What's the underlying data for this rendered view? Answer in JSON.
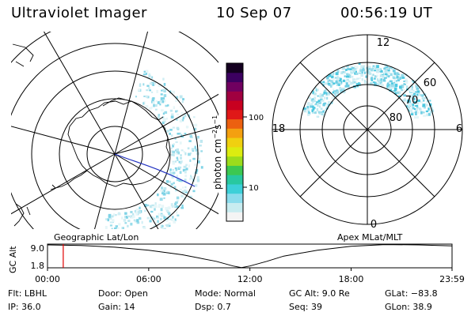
{
  "header": {
    "instrument": "Ultraviolet Imager",
    "date": "10 Sep 07",
    "time": "00:56:19 UT"
  },
  "panels": {
    "left_label": "Geographic Lat/Lon",
    "right_label": "Apex MLat/MLT",
    "right_mlt_labels": [
      "12",
      "18",
      "6",
      "0"
    ],
    "right_mlat_labels": [
      "60",
      "70",
      "80"
    ]
  },
  "colorbar": {
    "title": "photon cm",
    "exp1": "−2",
    "mid": "s",
    "exp2": "−1",
    "tick_labels": [
      "100",
      "10"
    ],
    "scale": "log",
    "colors": [
      "#f4f4f4",
      "#c8ecf0",
      "#8adcec",
      "#3cd0d8",
      "#28c8a0",
      "#3cc850",
      "#9cdc1c",
      "#dcec10",
      "#f0d010",
      "#f4a010",
      "#ec6010",
      "#e01818",
      "#c80020",
      "#a00040",
      "#700060",
      "#3c0060",
      "#140020"
    ]
  },
  "altitude_plot": {
    "ylabel": "GC Alt",
    "ytick_labels": [
      "9.0",
      "1.8"
    ],
    "xtick_labels": [
      "00:00",
      "06:00",
      "12:00",
      "18:00",
      "23:59"
    ],
    "current_time_marker": "00:56"
  },
  "chart_data": {
    "type": "line",
    "title": "",
    "xlabel": "",
    "ylabel": "GC Alt",
    "ylim": [
      1.8,
      9.0
    ],
    "x": [
      "00:00",
      "02:00",
      "04:00",
      "06:00",
      "08:00",
      "10:00",
      "11:00",
      "11:30",
      "12:00",
      "13:00",
      "14:00",
      "16:00",
      "18:00",
      "20:00",
      "22:00",
      "23:59"
    ],
    "series": [
      {
        "values": [
          9.0,
          8.8,
          8.3,
          7.4,
          6.0,
          4.0,
          2.6,
          2.1,
          2.6,
          4.0,
          5.6,
          7.4,
          8.6,
          9.1,
          9.0,
          8.7
        ]
      }
    ]
  },
  "footer": {
    "rows": [
      [
        {
          "k": "Flt:",
          "v": "LBHL"
        },
        {
          "k": "Door:",
          "v": "Open"
        },
        {
          "k": "Mode:",
          "v": "Normal"
        },
        {
          "k": "GC Alt:",
          "v": "9.0 Re"
        },
        {
          "k": "GLat:",
          "v": "−83.8"
        }
      ],
      [
        {
          "k": "IP:",
          "v": "36.0"
        },
        {
          "k": "Gain:",
          "v": "14"
        },
        {
          "k": "Dsp:",
          "v": "0.7"
        },
        {
          "k": "Seq:",
          "v": "39"
        },
        {
          "k": "GLon:",
          "v": "38.9"
        }
      ]
    ]
  }
}
